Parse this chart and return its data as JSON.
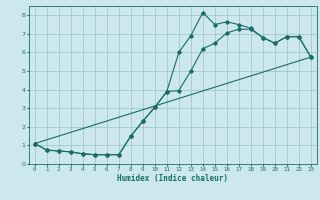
{
  "title": "",
  "xlabel": "Humidex (Indice chaleur)",
  "bg_color": "#cce8ec",
  "grid_color": "#a0c8cc",
  "line_color": "#1a6b6b",
  "xlim": [
    -0.5,
    23.5
  ],
  "ylim": [
    0,
    8.5
  ],
  "xticks": [
    0,
    1,
    2,
    3,
    4,
    5,
    6,
    7,
    8,
    9,
    10,
    11,
    12,
    13,
    14,
    15,
    16,
    17,
    18,
    19,
    20,
    21,
    22,
    23
  ],
  "yticks": [
    0,
    1,
    2,
    3,
    4,
    5,
    6,
    7,
    8
  ],
  "curve1_x": [
    0,
    1,
    2,
    3,
    4,
    5,
    6,
    7,
    8,
    9,
    10,
    11,
    12,
    13,
    14,
    15,
    16,
    17,
    18,
    19,
    20,
    21,
    22,
    23
  ],
  "curve1_y": [
    1.1,
    0.75,
    0.7,
    0.65,
    0.55,
    0.5,
    0.5,
    0.5,
    1.5,
    2.3,
    3.05,
    3.9,
    6.0,
    6.9,
    8.15,
    7.5,
    7.65,
    7.5,
    7.3,
    6.8,
    6.5,
    6.85,
    6.85,
    5.75
  ],
  "curve2_x": [
    0,
    1,
    2,
    3,
    4,
    5,
    6,
    7,
    8,
    9,
    10,
    11,
    12,
    13,
    14,
    15,
    16,
    17,
    18,
    19,
    20,
    21,
    22,
    23
  ],
  "curve2_y": [
    1.1,
    0.75,
    0.7,
    0.65,
    0.55,
    0.5,
    0.5,
    0.5,
    1.5,
    2.3,
    3.05,
    3.9,
    3.95,
    5.0,
    6.2,
    6.5,
    7.05,
    7.25,
    7.25,
    6.8,
    6.5,
    6.85,
    6.85,
    5.75
  ],
  "curve3_x": [
    0,
    23
  ],
  "curve3_y": [
    1.1,
    5.75
  ]
}
